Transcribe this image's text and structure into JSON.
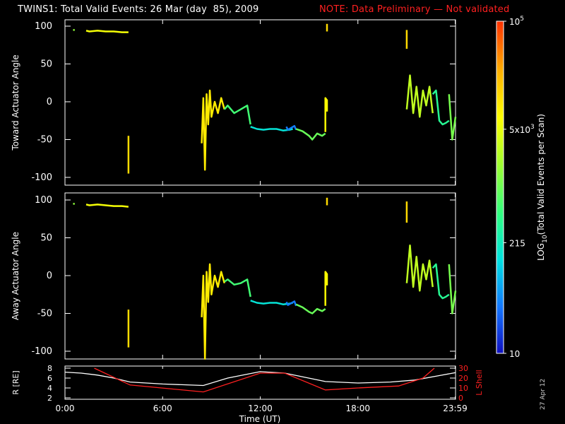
{
  "title": "TWINS1: Total Valid Events: 26 Mar (day  85), 2009",
  "note": "NOTE: Data Preliminary — Not validated",
  "date_stamp": "27 Apr 12",
  "colorbar": {
    "label": "LOG10(Total Valid Events per Scan)",
    "ticks": [
      "10",
      "215",
      "5x10^3",
      "10^5"
    ],
    "tick_values": [
      10,
      215,
      5000,
      100000
    ],
    "scale": "log",
    "colormap": [
      "#1010c0",
      "#1478ff",
      "#00e0e0",
      "#30ff80",
      "#a0ff30",
      "#ffff00",
      "#ffb000",
      "#ff3000"
    ]
  },
  "x_axis": {
    "label": "Time (UT)",
    "ticks": [
      "0:00",
      "6:00",
      "12:00",
      "18:00",
      "23:59"
    ],
    "tick_values": [
      0,
      6,
      12,
      18,
      23.98
    ],
    "range": [
      0,
      24
    ]
  },
  "chart_data": [
    {
      "type": "scatter",
      "ylabel": "Toward Actuator Angle",
      "ylim": [
        -110,
        110
      ],
      "yticks": [
        100,
        50,
        0,
        -50,
        -100
      ],
      "x_units": "hours UT",
      "segments": [
        {
          "x": [
            0.5,
            0.6
          ],
          "y": [
            95,
            95
          ],
          "c": 0.55
        },
        {
          "x": [
            1.3,
            1.5,
            2.0,
            2.5,
            3.0,
            3.5,
            3.9
          ],
          "y": [
            94,
            93,
            94,
            93,
            93,
            92,
            92
          ],
          "c": 0.7
        },
        {
          "x": [
            3.9,
            3.9
          ],
          "y": [
            -45,
            -95
          ],
          "c": 0.78
        },
        {
          "x": [
            8.4,
            8.5,
            8.6,
            8.7,
            8.8,
            8.9,
            9.0,
            9.2,
            9.4,
            9.6,
            9.8
          ],
          "y": [
            -55,
            5,
            -90,
            10,
            -30,
            15,
            -20,
            0,
            -15,
            5,
            -10
          ],
          "c": 0.75
        },
        {
          "x": [
            9.8,
            10.0,
            10.4,
            10.8,
            11.2,
            11.4
          ],
          "y": [
            -10,
            -5,
            -15,
            -10,
            -5,
            -30
          ],
          "c": 0.45
        },
        {
          "x": [
            11.4,
            11.8,
            12.2,
            12.6,
            13.0,
            13.4,
            13.8,
            14.0
          ],
          "y": [
            -33,
            -36,
            -37,
            -36,
            -36,
            -38,
            -37,
            -36
          ],
          "c": 0.3
        },
        {
          "x": [
            13.6,
            13.7,
            14.1,
            14.2
          ],
          "y": [
            -33,
            -37,
            -32,
            -37
          ],
          "c": 0.15
        },
        {
          "x": [
            14.2,
            14.6,
            15.0,
            15.2,
            15.5,
            15.8,
            16.0
          ],
          "y": [
            -36,
            -39,
            -45,
            -50,
            -42,
            -45,
            -42
          ],
          "c": 0.5
        },
        {
          "x": [
            16.0,
            16.0,
            16.1,
            16.1
          ],
          "y": [
            -40,
            5,
            2,
            -13
          ],
          "c": 0.72
        },
        {
          "x": [
            16.1,
            16.1
          ],
          "y": [
            93,
            103
          ],
          "c": 0.78
        },
        {
          "x": [
            21.0,
            21.0
          ],
          "y": [
            95,
            70
          ],
          "c": 0.78
        },
        {
          "x": [
            21.0,
            21.2,
            21.4,
            21.6,
            21.8,
            22.0,
            22.2,
            22.4,
            22.6
          ],
          "y": [
            -10,
            35,
            -15,
            20,
            -20,
            15,
            -5,
            20,
            -15
          ],
          "c": 0.62
        },
        {
          "x": [
            22.6,
            22.8,
            23.0,
            23.2,
            23.4,
            23.6
          ],
          "y": [
            10,
            15,
            -25,
            -30,
            -28,
            -25
          ],
          "c": 0.4
        },
        {
          "x": [
            23.6,
            23.8,
            24.0
          ],
          "y": [
            10,
            -50,
            -20
          ],
          "c": 0.52
        }
      ]
    },
    {
      "type": "scatter",
      "ylabel": "Away Actuator Angle",
      "ylim": [
        -110,
        110
      ],
      "yticks": [
        100,
        50,
        0,
        -50,
        -100
      ],
      "x_units": "hours UT",
      "segments": [
        {
          "x": [
            0.5,
            0.6
          ],
          "y": [
            95,
            95
          ],
          "c": 0.55
        },
        {
          "x": [
            1.3,
            1.5,
            2.0,
            2.5,
            3.0,
            3.5,
            3.9
          ],
          "y": [
            94,
            93,
            94,
            93,
            92,
            92,
            91
          ],
          "c": 0.7
        },
        {
          "x": [
            3.9,
            3.9
          ],
          "y": [
            -45,
            -95
          ],
          "c": 0.78
        },
        {
          "x": [
            8.4,
            8.5,
            8.6,
            8.7,
            8.8,
            8.9,
            9.0,
            9.2,
            9.4,
            9.6,
            9.8
          ],
          "y": [
            -55,
            0,
            -110,
            5,
            -35,
            15,
            -25,
            0,
            -15,
            5,
            -10
          ],
          "c": 0.75
        },
        {
          "x": [
            9.8,
            10.0,
            10.4,
            10.8,
            11.2,
            11.4
          ],
          "y": [
            -8,
            -5,
            -12,
            -10,
            -5,
            -28
          ],
          "c": 0.45
        },
        {
          "x": [
            11.4,
            11.8,
            12.2,
            12.6,
            13.0,
            13.4,
            13.8,
            14.0
          ],
          "y": [
            -33,
            -36,
            -37,
            -36,
            -36,
            -38,
            -37,
            -36
          ],
          "c": 0.3
        },
        {
          "x": [
            13.6,
            13.7,
            14.1,
            14.2
          ],
          "y": [
            -35,
            -39,
            -34,
            -40
          ],
          "c": 0.15
        },
        {
          "x": [
            14.2,
            14.6,
            15.0,
            15.2,
            15.5,
            15.8,
            16.0
          ],
          "y": [
            -38,
            -42,
            -48,
            -50,
            -44,
            -47,
            -44
          ],
          "c": 0.5
        },
        {
          "x": [
            16.0,
            16.0,
            16.1,
            16.1
          ],
          "y": [
            -40,
            5,
            2,
            -13
          ],
          "c": 0.72
        },
        {
          "x": [
            16.1,
            16.1
          ],
          "y": [
            93,
            103
          ],
          "c": 0.78
        },
        {
          "x": [
            21.0,
            21.0
          ],
          "y": [
            98,
            70
          ],
          "c": 0.78
        },
        {
          "x": [
            21.0,
            21.2,
            21.4,
            21.6,
            21.8,
            22.0,
            22.2,
            22.4,
            22.6
          ],
          "y": [
            -10,
            40,
            -15,
            25,
            -20,
            15,
            -5,
            20,
            -15
          ],
          "c": 0.62
        },
        {
          "x": [
            22.6,
            22.8,
            23.0,
            23.2,
            23.4,
            23.6
          ],
          "y": [
            10,
            15,
            -25,
            -30,
            -28,
            -25
          ],
          "c": 0.4
        },
        {
          "x": [
            23.6,
            23.8,
            24.0
          ],
          "y": [
            15,
            -50,
            -20
          ],
          "c": 0.52
        }
      ]
    },
    {
      "type": "line",
      "ylabel": "R [RE]",
      "ylim": [
        2,
        8
      ],
      "yticks": [
        8,
        6,
        4,
        2
      ],
      "y2label": "L Shell",
      "y2lim": [
        0,
        30
      ],
      "y2ticks": [
        30,
        20,
        10,
        0
      ],
      "series": [
        {
          "name": "R [RE]",
          "color": "#ffffff",
          "axis": "left",
          "x": [
            0,
            1,
            2,
            3,
            4,
            6,
            8.5,
            10,
            12,
            13.5,
            16,
            18,
            20,
            21.5,
            23,
            24
          ],
          "y": [
            7.2,
            7.0,
            6.6,
            6.0,
            5.2,
            4.8,
            4.5,
            6.0,
            7.3,
            7.0,
            5.3,
            5.0,
            5.2,
            5.6,
            6.5,
            7.1
          ]
        },
        {
          "name": "L Shell",
          "color": "#ff2020",
          "axis": "right",
          "x": [
            1.8,
            4,
            8.5,
            12,
            13.5,
            16,
            18,
            20.5,
            22,
            22.7
          ],
          "y": [
            30,
            13,
            6,
            25,
            25,
            8,
            10,
            12,
            20,
            30
          ]
        }
      ]
    }
  ]
}
